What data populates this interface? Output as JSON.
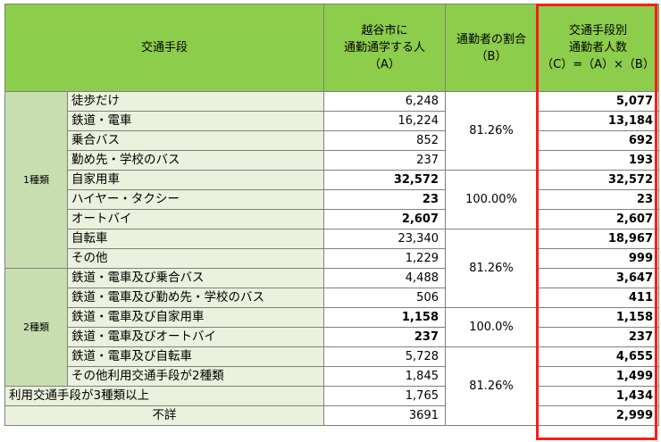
{
  "header": {
    "mode": "交通手段",
    "people_l1": "越谷市に",
    "people_l2": "通勤通学する人",
    "people_l3": "（A）",
    "ratio_l1": "通勤者の割合",
    "ratio_l2": "（B）",
    "commuters_l1": "交通手段別",
    "commuters_l2": "通勤者人数",
    "commuters_l3": "（C）=（A）×（B）"
  },
  "categories": {
    "one": "1種類",
    "two": "2種類"
  },
  "rows": [
    {
      "name": "徒歩だけ",
      "people": "6,248",
      "commuters": "5,077"
    },
    {
      "name": "鉄道・電車",
      "people": "16,224",
      "commuters": "13,184"
    },
    {
      "name": "乗合バス",
      "people": "852",
      "commuters": "692"
    },
    {
      "name": "勤め先・学校のバス",
      "people": "237",
      "commuters": "193"
    },
    {
      "name": "自家用車",
      "people": "32,572",
      "commuters": "32,572"
    },
    {
      "name": "ハイヤー・タクシー",
      "people": "23",
      "commuters": "23"
    },
    {
      "name": "オートバイ",
      "people": "2,607",
      "commuters": "2,607"
    },
    {
      "name": "自転車",
      "people": "23,340",
      "commuters": "18,967"
    },
    {
      "name": "その他",
      "people": "1,229",
      "commuters": "999"
    },
    {
      "name": "鉄道・電車及び乗合バス",
      "people": "4,488",
      "commuters": "3,647"
    },
    {
      "name": "鉄道・電車及び勤め先・学校のバス",
      "people": "506",
      "commuters": "411"
    },
    {
      "name": "鉄道・電車及び自家用車",
      "people": "1,158",
      "commuters": "1,158"
    },
    {
      "name": "鉄道・電車及びオートバイ",
      "people": "237",
      "commuters": "237"
    },
    {
      "name": "鉄道・電車及び自転車",
      "people": "5,728",
      "commuters": "4,655"
    },
    {
      "name": "その他利用交通手段が2種類",
      "people": "1,845",
      "commuters": "1,499"
    },
    {
      "name": "利用交通手段が3種類以上",
      "people": "1,765",
      "commuters": "1,434"
    },
    {
      "name": "不詳",
      "people": "3691",
      "commuters": "2,999"
    }
  ],
  "ratios": {
    "r1": "81.26%",
    "r2": "100.00%",
    "r3": "81.26%",
    "r4": "100.0%",
    "r5": "81.26%"
  },
  "colors": {
    "header_bg": "#8ccd4b",
    "category_bg": "#c8deb0",
    "name_bg": "#eaf1dd",
    "highlight": "#ff1a1a"
  }
}
